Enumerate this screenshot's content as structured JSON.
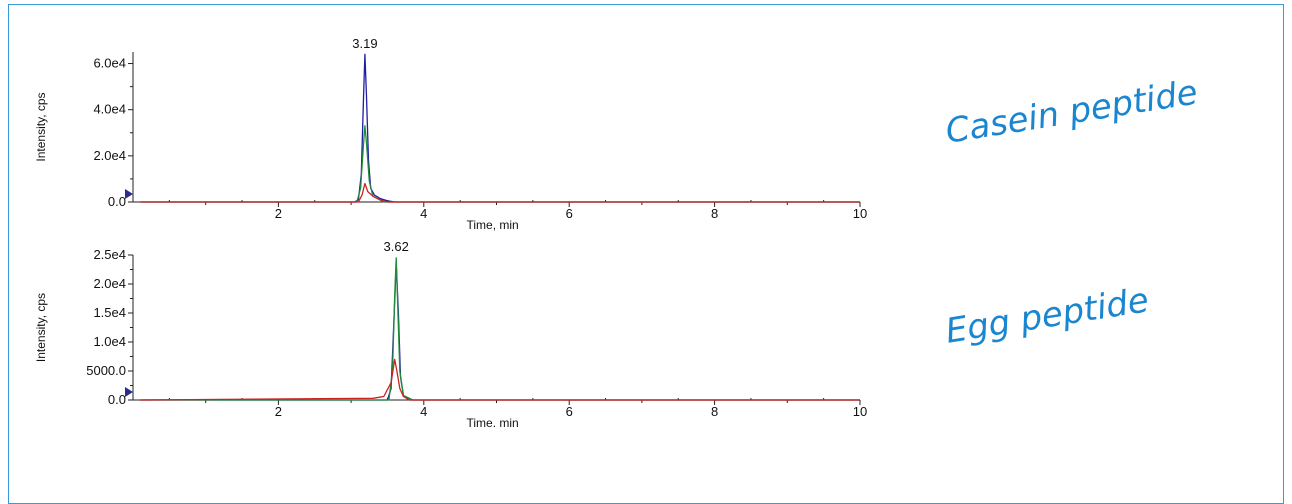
{
  "annotations": {
    "casein": "Casein peptide",
    "egg": "Egg peptide"
  },
  "colors": {
    "frame": "#3a9ad9",
    "annotation": "#1a86cf",
    "trace_blue": "#1f1fa0",
    "trace_green": "#1f8a3a",
    "trace_red": "#d02020",
    "marker": "#2b2b8c"
  },
  "chart_data": [
    {
      "type": "line",
      "xlabel": "Time, min",
      "ylabel": "Intensity, cps",
      "xlim": [
        0,
        10
      ],
      "ylim": [
        0,
        65000
      ],
      "xticks": [
        2,
        4,
        6,
        8,
        10
      ],
      "xtick_labels": [
        "2",
        "4",
        "6",
        "8",
        "10"
      ],
      "yticks": [
        0,
        20000,
        40000,
        60000
      ],
      "ytick_labels": [
        "0.0",
        "2.0e4",
        "4.0e4",
        "6.0e4"
      ],
      "peak_label": "3.19",
      "series": [
        {
          "color": "#1f1fa0",
          "x": [
            0.1,
            3.05,
            3.1,
            3.14,
            3.17,
            3.19,
            3.21,
            3.24,
            3.27,
            3.32,
            3.4,
            3.5,
            3.6,
            10.0
          ],
          "y": [
            0,
            0,
            1000,
            12000,
            45000,
            64000,
            47000,
            18000,
            6000,
            3000,
            1500,
            500,
            0,
            0
          ]
        },
        {
          "color": "#1f8a3a",
          "x": [
            0.1,
            3.08,
            3.13,
            3.17,
            3.19,
            3.21,
            3.25,
            3.3,
            3.45,
            10.0
          ],
          "y": [
            0,
            0,
            6000,
            25000,
            33000,
            26000,
            9000,
            2500,
            0,
            0
          ]
        },
        {
          "color": "#d02020",
          "x": [
            0.1,
            3.1,
            3.15,
            3.19,
            3.23,
            3.3,
            3.38,
            3.5,
            10.0
          ],
          "y": [
            0,
            0,
            3000,
            8000,
            4500,
            2500,
            1200,
            0,
            0
          ]
        }
      ]
    },
    {
      "type": "line",
      "xlabel": "Time. min",
      "ylabel": "Intensity, cps",
      "xlim": [
        0,
        10
      ],
      "ylim": [
        0,
        25000
      ],
      "xticks": [
        2,
        4,
        6,
        8,
        10
      ],
      "xtick_labels": [
        "2",
        "4",
        "6",
        "8",
        "10"
      ],
      "yticks": [
        0,
        5000,
        10000,
        15000,
        20000,
        25000
      ],
      "ytick_labels": [
        "0.0",
        "5000.0",
        "1.0e4",
        "1.5e4",
        "2.0e4",
        "2.5e4"
      ],
      "peak_label": "3.62",
      "series": [
        {
          "color": "#1f1fa0",
          "x": [
            0.1,
            3.5,
            3.55,
            3.59,
            3.62,
            3.65,
            3.68,
            3.72,
            3.8,
            10.0
          ],
          "y": [
            0,
            0,
            2000,
            14000,
            23500,
            15000,
            4000,
            800,
            0,
            0
          ]
        },
        {
          "color": "#1f8a3a",
          "x": [
            0.1,
            3.52,
            3.57,
            3.6,
            3.62,
            3.64,
            3.67,
            3.72,
            3.85,
            10.0
          ],
          "y": [
            0,
            0,
            5000,
            18000,
            24500,
            17000,
            5000,
            800,
            0,
            0
          ]
        },
        {
          "color": "#d02020",
          "x": [
            0.1,
            3.3,
            3.45,
            3.55,
            3.6,
            3.63,
            3.67,
            3.72,
            3.8,
            10.0
          ],
          "y": [
            0,
            300,
            600,
            3000,
            7000,
            5000,
            2000,
            600,
            0,
            0
          ]
        }
      ]
    }
  ]
}
